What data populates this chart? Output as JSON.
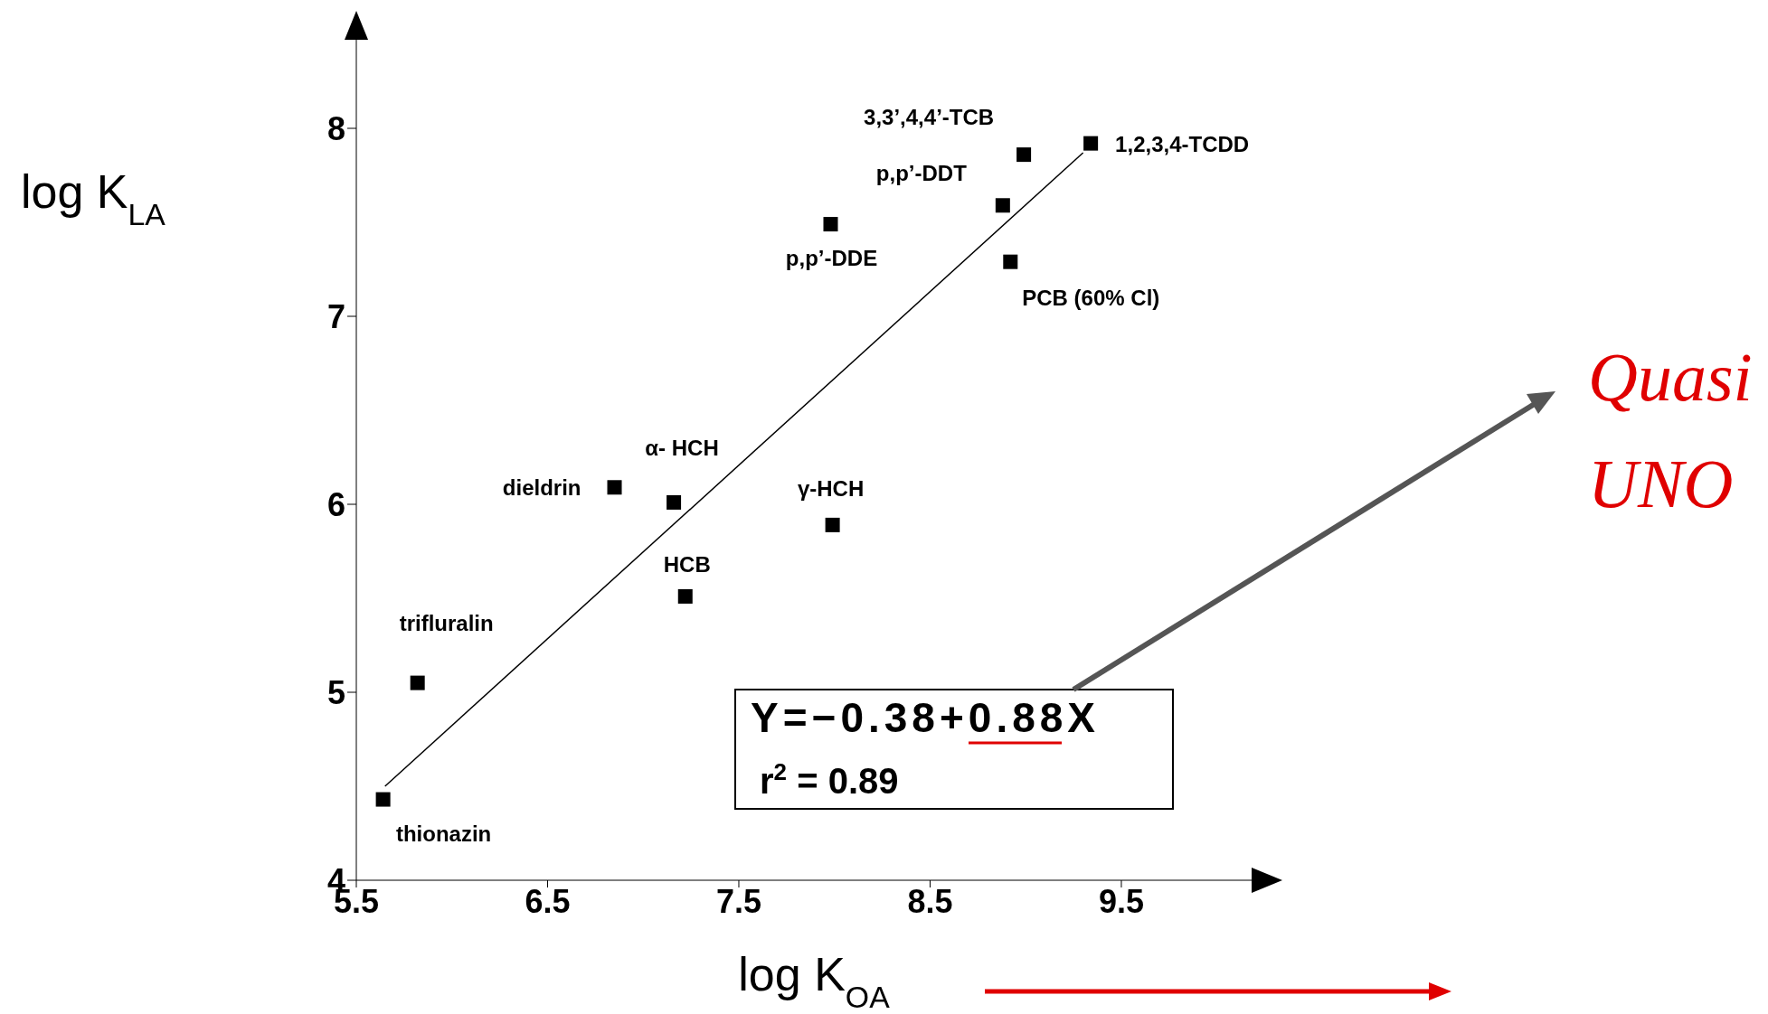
{
  "chart_data": {
    "type": "scatter",
    "xlabel": "log K$_{OA}$",
    "ylabel": "log K$_{LA}$",
    "xlim": [
      5.5,
      10.2
    ],
    "ylim": [
      4,
      8.5
    ],
    "xticks": [
      5.5,
      6.5,
      7.5,
      8.5,
      9.5
    ],
    "yticks": [
      4,
      5,
      6,
      7,
      8
    ],
    "marker": "square",
    "series": [
      {
        "type": "scatter",
        "color": "#000000",
        "x": [
          5.64,
          5.82,
          6.85,
          7.16,
          7.22,
          7.99,
          7.98,
          8.88,
          8.92,
          8.99,
          9.34
        ],
        "values": [
          4.43,
          5.05,
          6.09,
          6.01,
          5.51,
          5.89,
          7.49,
          7.59,
          7.29,
          7.86,
          7.92
        ]
      },
      {
        "type": "line",
        "color": "#000000",
        "marker": "none",
        "x": [
          5.65,
          9.3
        ],
        "values": [
          4.5,
          7.87
        ]
      }
    ],
    "annotations": [
      {
        "text": "thionazin",
        "x": 5.64,
        "y": 4.43
      },
      {
        "text": "trifluralin",
        "x": 5.82,
        "y": 5.05
      },
      {
        "text": "dieldrin",
        "x": 6.85,
        "y": 6.09
      },
      {
        "text": "α- HCH",
        "x": 7.16,
        "y": 6.01
      },
      {
        "text": "HCB",
        "x": 7.22,
        "y": 5.51
      },
      {
        "text": "γ-HCH",
        "x": 7.99,
        "y": 5.89
      },
      {
        "text": "p,p’-DDE",
        "x": 7.98,
        "y": 7.49
      },
      {
        "text": "p,p’-DDT",
        "x": 8.88,
        "y": 7.59
      },
      {
        "text": "PCB (60% Cl)",
        "x": 8.92,
        "y": 7.29
      },
      {
        "text": "3,3’,4,4’-TCB",
        "x": 8.99,
        "y": 7.86
      },
      {
        "text": "1,2,3,4-TCDD",
        "x": 9.34,
        "y": 7.92
      },
      "Y=−0.38+0.88X",
      "r$^{2}$ = 0.89",
      "Quasi UNO"
    ]
  }
}
